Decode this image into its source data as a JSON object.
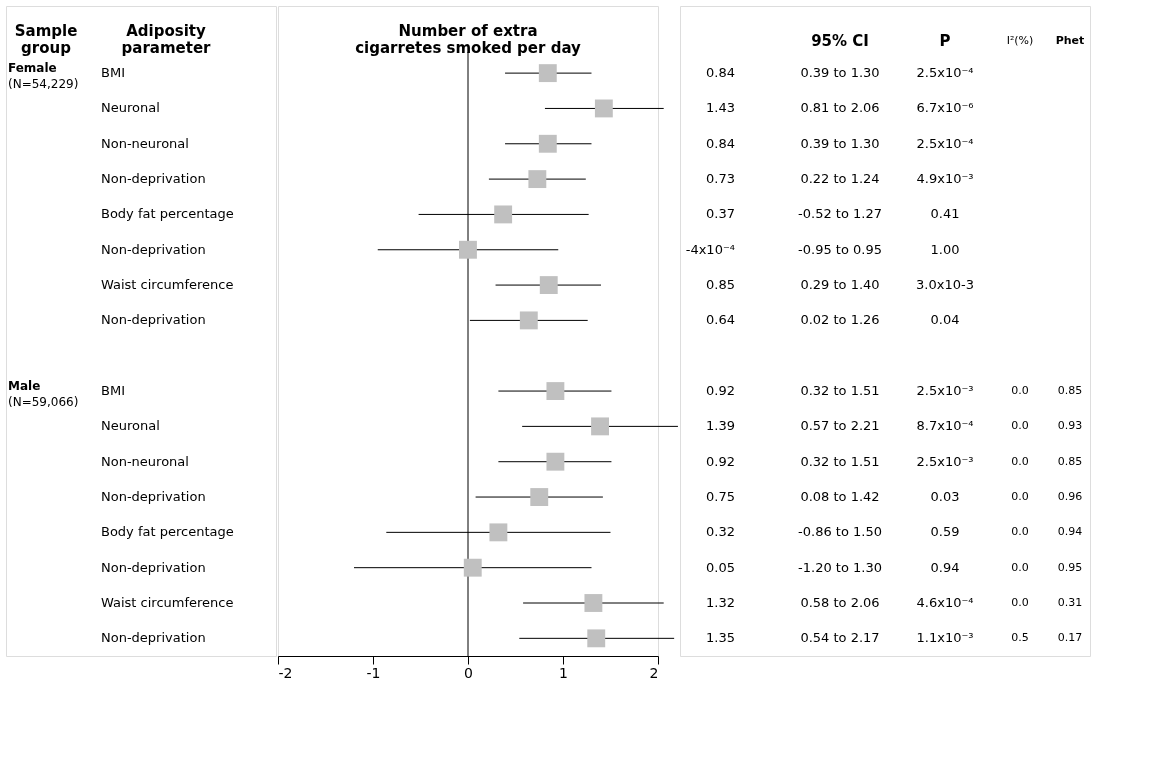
{
  "chart_data": {
    "type": "scatter",
    "orientation": "horizontal",
    "xlabel": "Number of extra cigarretes smoked per day",
    "ylabel": "Adiposity parameter",
    "categories": [
      "BMI",
      "Neuronal",
      "Non-neuronal",
      "Non-deprivation",
      "Body fat percentage",
      "Non-deprivation",
      "Waist circumference",
      "Non-deprivation",
      null,
      "BMI",
      "Neuronal",
      "Non-neuronal",
      "Non-deprivation",
      "Body fat percentage",
      "Non-deprivation",
      "Waist circumference",
      "Non-deprivation"
    ],
    "values": [
      0.84,
      1.43,
      0.84,
      0.73,
      0.37,
      -0.0004,
      0.85,
      0.64,
      null,
      0.92,
      1.39,
      0.92,
      0.75,
      0.32,
      0.05,
      1.32,
      1.35
    ],
    "errors": [
      [
        0.39,
        1.3
      ],
      [
        0.81,
        2.06
      ],
      [
        0.39,
        1.3
      ],
      [
        0.22,
        1.24
      ],
      [
        -0.52,
        1.27
      ],
      [
        -0.95,
        0.95
      ],
      [
        0.29,
        1.4
      ],
      [
        0.02,
        1.26
      ],
      null,
      [
        0.32,
        1.51
      ],
      [
        0.57,
        2.21
      ],
      [
        0.32,
        1.51
      ],
      [
        0.08,
        1.42
      ],
      [
        -0.86,
        1.5
      ],
      [
        -1.2,
        1.3
      ],
      [
        0.58,
        2.06
      ],
      [
        0.54,
        2.17
      ]
    ],
    "value_labels": [
      "0.84",
      "1.43",
      "0.84",
      "0.73",
      "0.37",
      "-4x10⁻⁴",
      "0.85",
      "0.64",
      null,
      "0.92",
      "1.39",
      "0.92",
      "0.75",
      "0.32",
      "0.05",
      "1.32",
      "1.35"
    ],
    "color": "#c0c0c0",
    "marker": "square",
    "grid": false,
    "xlim": [
      -2,
      2
    ],
    "xticks": [
      -2,
      -1,
      0,
      1,
      2
    ],
    "ref_lines": [
      {
        "axis": "x",
        "value": 0,
        "color": "#000000"
      }
    ],
    "annotations": [
      "Sample group",
      "95% CI",
      "P",
      "I²(%)",
      "Phet",
      "Female",
      "(N=54,229)",
      "Male",
      "(N=59,066)",
      "0.39 to 1.30",
      "0.81 to 2.06",
      "0.39 to 1.30",
      "0.22 to 1.24",
      "-0.52 to 1.27",
      "-0.95 to 0.95",
      "0.29 to 1.40",
      "0.02 to 1.26",
      "0.32 to 1.51",
      "0.57 to 2.21",
      "0.32 to 1.51",
      "0.08 to 1.42",
      "-0.86 to 1.50",
      "-1.20 to 1.30",
      "0.58 to 2.06",
      "0.54 to 2.17",
      "2.5x10⁻⁴",
      "6.7x10⁻⁶",
      "2.5x10⁻⁴",
      "4.9x10⁻³",
      "0.41",
      "1.00",
      "3.0x10-3",
      "0.04",
      "2.5x10⁻³",
      "8.7x10⁻⁴",
      "2.5x10⁻³",
      "0.03",
      "0.59",
      "0.94",
      "4.6x10⁻⁴",
      "1.1x10⁻³",
      "0.0",
      "0.0",
      "0.0",
      "0.0",
      "0.0",
      "0.0",
      "0.0",
      "0.5",
      "0.85",
      "0.93",
      "0.85",
      "0.96",
      "0.94",
      "0.95",
      "0.31",
      "0.17"
    ]
  }
}
